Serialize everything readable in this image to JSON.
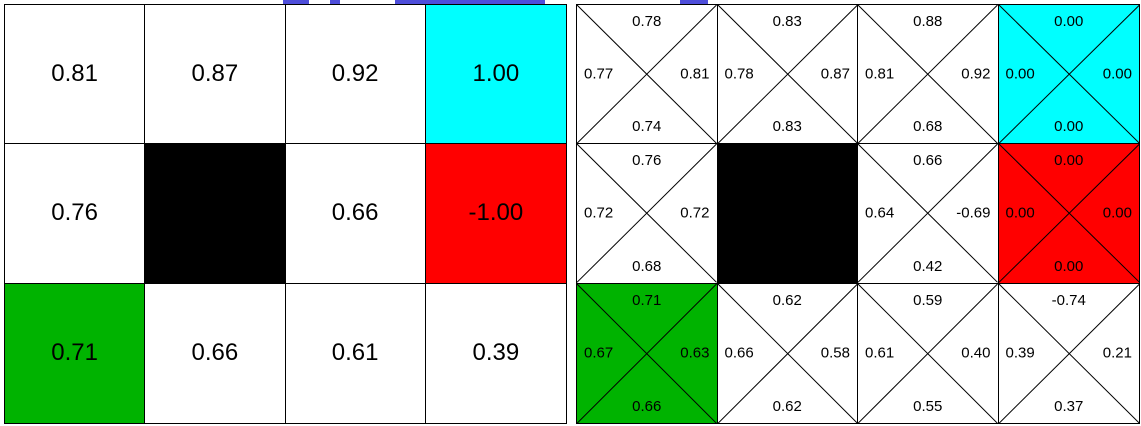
{
  "colors": {
    "goal": "#00ffff",
    "pit": "#ff0000",
    "start": "#00b300",
    "wall": "#000000",
    "empty": "#ffffff"
  },
  "value_grid": [
    [
      {
        "value": "0.81",
        "type": "empty"
      },
      {
        "value": "0.87",
        "type": "empty"
      },
      {
        "value": "0.92",
        "type": "empty"
      },
      {
        "value": "1.00",
        "type": "goal"
      }
    ],
    [
      {
        "value": "0.76",
        "type": "empty"
      },
      {
        "value": "",
        "type": "wall"
      },
      {
        "value": "0.66",
        "type": "empty"
      },
      {
        "value": "-1.00",
        "type": "pit"
      }
    ],
    [
      {
        "value": "0.71",
        "type": "start"
      },
      {
        "value": "0.66",
        "type": "empty"
      },
      {
        "value": "0.61",
        "type": "empty"
      },
      {
        "value": "0.39",
        "type": "empty"
      }
    ]
  ],
  "q_grid": [
    [
      {
        "type": "empty",
        "up": "0.78",
        "left": "0.77",
        "right": "0.81",
        "down": "0.74"
      },
      {
        "type": "empty",
        "up": "0.83",
        "left": "0.78",
        "right": "0.87",
        "down": "0.83"
      },
      {
        "type": "empty",
        "up": "0.88",
        "left": "0.81",
        "right": "0.92",
        "down": "0.68"
      },
      {
        "type": "goal",
        "up": "0.00",
        "left": "0.00",
        "right": "0.00",
        "down": "0.00"
      }
    ],
    [
      {
        "type": "empty",
        "up": "0.76",
        "left": "0.72",
        "right": "0.72",
        "down": "0.68"
      },
      {
        "type": "wall",
        "up": "",
        "left": "",
        "right": "",
        "down": ""
      },
      {
        "type": "empty",
        "up": "0.66",
        "left": "0.64",
        "right": "-0.69",
        "down": "0.42"
      },
      {
        "type": "pit",
        "up": "0.00",
        "left": "0.00",
        "right": "0.00",
        "down": "0.00"
      }
    ],
    [
      {
        "type": "start",
        "up": "0.71",
        "left": "0.67",
        "right": "0.63",
        "down": "0.66"
      },
      {
        "type": "empty",
        "up": "0.62",
        "left": "0.66",
        "right": "0.58",
        "down": "0.62"
      },
      {
        "type": "empty",
        "up": "0.59",
        "left": "0.61",
        "right": "0.40",
        "down": "0.55"
      },
      {
        "type": "empty",
        "up": "-0.74",
        "left": "0.39",
        "right": "0.21",
        "down": "0.37"
      }
    ]
  ]
}
